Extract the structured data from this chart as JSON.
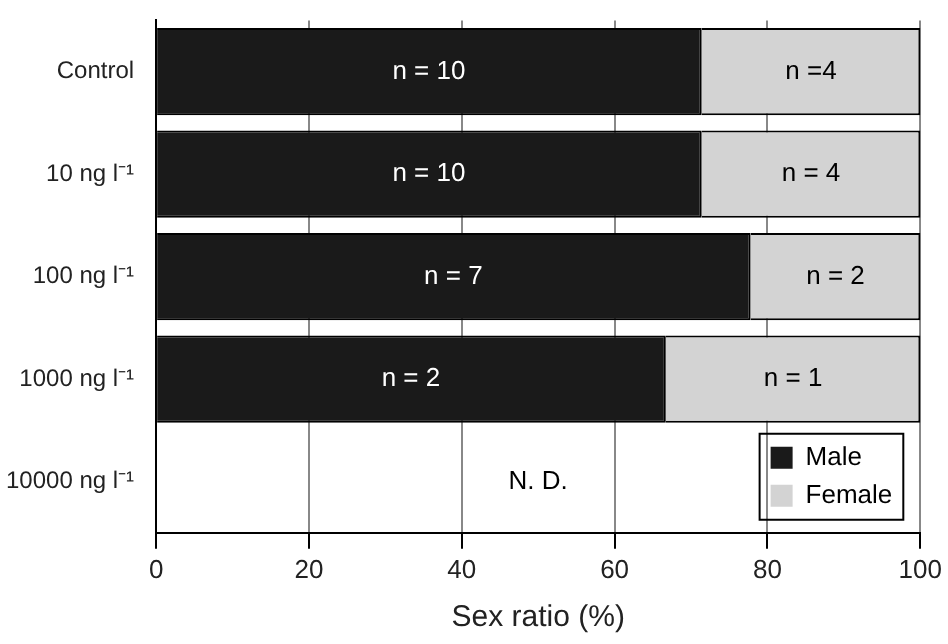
{
  "chart_data": {
    "type": "bar",
    "orientation": "horizontal",
    "stacked": true,
    "categories": [
      "Control",
      "10 ng l⁻¹",
      "100 ng l⁻¹",
      "1000 ng l⁻¹",
      "10000 ng l⁻¹"
    ],
    "series": [
      {
        "name": "Male",
        "color": "#1a1a1a",
        "values": [
          71.4,
          71.4,
          77.8,
          66.7,
          null
        ]
      },
      {
        "name": "Female",
        "color": "#d3d3d3",
        "values": [
          28.6,
          28.6,
          22.2,
          33.3,
          null
        ]
      }
    ],
    "xlabel": "Sex ratio (%)",
    "xlim": [
      0,
      100
    ],
    "xticks": [
      0,
      20,
      40,
      60,
      80,
      100
    ],
    "grid": "x",
    "legend": "bottom right",
    "annotations": [
      "n = 10",
      "n =4",
      "n = 10",
      "n = 4",
      "n = 7",
      "n = 2",
      "n = 2",
      "n = 1",
      "N. D."
    ]
  }
}
